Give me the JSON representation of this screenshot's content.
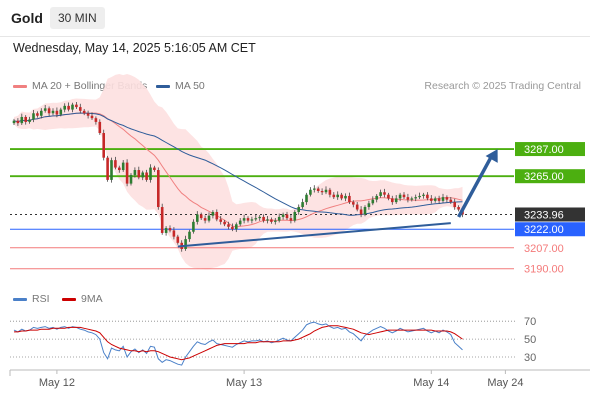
{
  "header": {
    "title": "Gold",
    "timeframe": "30 MIN"
  },
  "timestamp": "Wednesday, May 14, 2025 5:16:05 AM CET",
  "legend": {
    "ma20": {
      "label": "MA 20 + Bollinger Bands",
      "color": "#f08080"
    },
    "ma50": {
      "label": "MA 50",
      "color": "#2f5d9a"
    }
  },
  "credit": "Research © 2025 Trading Central",
  "colors": {
    "up": "#2e7d32",
    "down": "#c62828",
    "resistance": "#4caf10",
    "current": "#333333",
    "pivot": "#2962ff",
    "support": "#f47a7a",
    "band": "#fde0e0",
    "trend": "#2f5d9a",
    "rsi": "#4a80c8",
    "rsi_ma": "#cc0000"
  },
  "rsi_legend": {
    "rsi": {
      "label": "RSI",
      "color": "#4a80c8"
    },
    "ma": {
      "label": "9MA",
      "color": "#cc0000"
    }
  },
  "chart_data": {
    "type": "candlestick",
    "price_axis": {
      "min": 3176,
      "max": 3330
    },
    "levels": [
      {
        "label": "3287.00",
        "value": 3287,
        "kind": "resistance"
      },
      {
        "label": "3265.00",
        "value": 3265,
        "kind": "resistance"
      },
      {
        "label": "3233.96",
        "value": 3233.96,
        "kind": "current"
      },
      {
        "label": "3222.00",
        "value": 3222,
        "kind": "pivot"
      },
      {
        "label": "3207.00",
        "value": 3207,
        "kind": "support"
      },
      {
        "label": "3190.00",
        "value": 3190,
        "kind": "support"
      }
    ],
    "x_labels": [
      {
        "label": "May 12",
        "index": 11
      },
      {
        "label": "May 13",
        "index": 59
      },
      {
        "label": "May 14",
        "index": 107
      },
      {
        "label": "May 24",
        "index": 126
      }
    ],
    "closes": [
      3310,
      3308,
      3313,
      3309,
      3311,
      3316,
      3314,
      3318,
      3320,
      3316,
      3318,
      3315,
      3319,
      3322,
      3319,
      3323,
      3321,
      3318,
      3316,
      3314,
      3312,
      3309,
      3300,
      3280,
      3262,
      3278,
      3272,
      3270,
      3276,
      3259,
      3266,
      3270,
      3264,
      3268,
      3262,
      3272,
      3270,
      3240,
      3219,
      3223,
      3221,
      3216,
      3211,
      3206,
      3214,
      3220,
      3228,
      3234,
      3231,
      3229,
      3233,
      3236,
      3230,
      3228,
      3226,
      3224,
      3222,
      3226,
      3229,
      3231,
      3229,
      3230,
      3231,
      3232,
      3229,
      3230,
      3228,
      3229,
      3232,
      3234,
      3231,
      3229,
      3236,
      3240,
      3244,
      3250,
      3254,
      3255,
      3253,
      3252,
      3254,
      3250,
      3248,
      3250,
      3247,
      3249,
      3244,
      3242,
      3238,
      3234,
      3240,
      3243,
      3246,
      3249,
      3252,
      3250,
      3247,
      3244,
      3247,
      3250,
      3248,
      3246,
      3247,
      3248,
      3249,
      3250,
      3247,
      3245,
      3247,
      3245,
      3248,
      3246,
      3244,
      3240,
      3238,
      3234
    ],
    "trendline": {
      "from": {
        "index": 42,
        "value": 3208
      },
      "to": {
        "index": 112,
        "value": 3227
      }
    },
    "forecast_arrow": {
      "from": {
        "index": 114,
        "value": 3232
      },
      "to": {
        "index": 124,
        "value": 3287
      }
    },
    "rsi_axis": {
      "min": 20,
      "max": 78,
      "ticks": [
        70,
        50,
        30
      ]
    },
    "rsi_dotted_levels": [
      70,
      50,
      30
    ],
    "rsi": [
      60,
      58,
      61,
      59,
      60,
      63,
      62,
      63,
      64,
      62,
      63,
      61,
      63,
      64,
      62,
      64,
      63,
      61,
      60,
      58,
      57,
      55,
      50,
      35,
      28,
      40,
      38,
      37,
      42,
      30,
      36,
      39,
      35,
      38,
      34,
      42,
      41,
      28,
      24,
      27,
      26,
      24,
      22,
      21,
      30,
      36,
      42,
      47,
      45,
      44,
      47,
      49,
      45,
      44,
      43,
      42,
      41,
      44,
      46,
      48,
      47,
      48,
      48,
      49,
      47,
      48,
      46,
      47,
      49,
      51,
      49,
      48,
      52,
      56,
      60,
      66,
      68,
      69,
      67,
      66,
      67,
      64,
      62,
      63,
      61,
      62,
      58,
      56,
      52,
      48,
      54,
      57,
      60,
      62,
      64,
      62,
      59,
      57,
      59,
      62,
      60,
      58,
      59,
      60,
      61,
      62,
      59,
      57,
      59,
      57,
      60,
      58,
      55,
      46,
      42,
      38
    ],
    "rsi_ma": [
      58,
      58,
      59,
      59,
      60,
      60,
      60,
      61,
      61,
      61,
      62,
      62,
      62,
      62,
      63,
      63,
      63,
      63,
      62,
      61,
      60,
      59,
      57,
      52,
      47,
      44,
      42,
      40,
      39,
      38,
      37,
      37,
      36,
      37,
      36,
      37,
      37,
      36,
      34,
      32,
      30,
      29,
      28,
      27,
      28,
      29,
      31,
      33,
      35,
      37,
      39,
      41,
      43,
      44,
      45,
      45,
      45,
      45,
      45,
      45,
      46,
      46,
      46,
      47,
      47,
      47,
      47,
      47,
      47,
      48,
      48,
      48,
      49,
      50,
      52,
      54,
      56,
      59,
      61,
      63,
      64,
      65,
      65,
      65,
      64,
      63,
      62,
      61,
      59,
      57,
      56,
      55,
      56,
      57,
      58,
      59,
      60,
      60,
      60,
      60,
      60,
      60,
      60,
      60,
      60,
      60,
      60,
      60,
      59,
      59,
      59,
      59,
      58,
      56,
      53,
      50
    ]
  }
}
